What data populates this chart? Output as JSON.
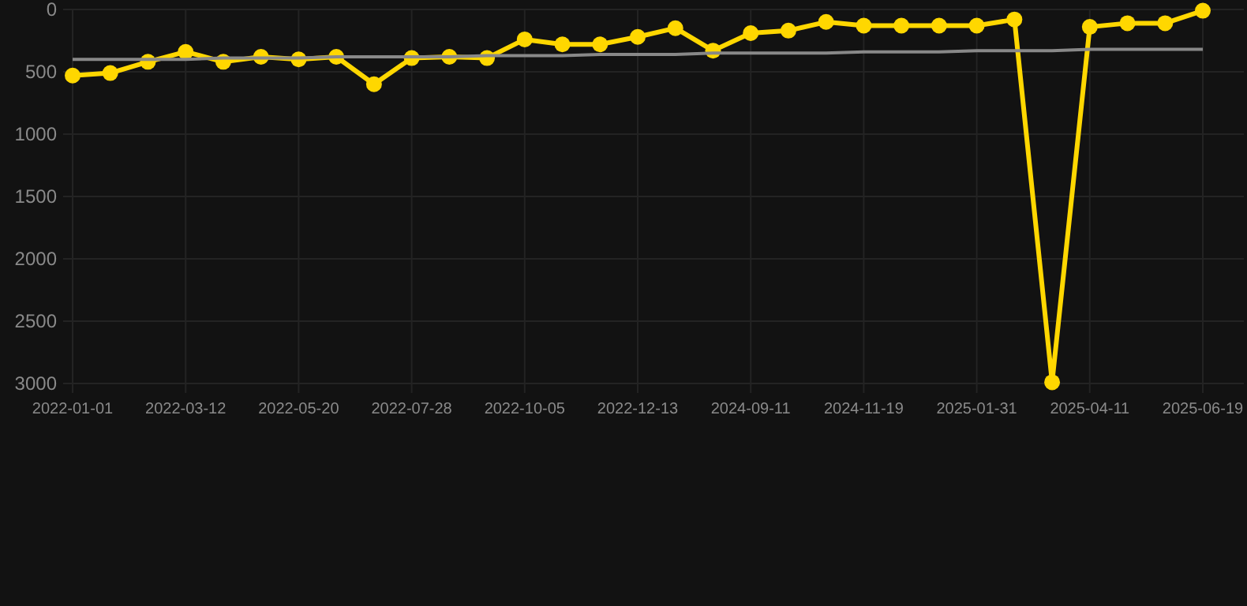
{
  "chart_data": {
    "type": "line",
    "categories": [
      "2022-01-01",
      null,
      null,
      "2022-03-12",
      null,
      null,
      "2022-05-20",
      null,
      null,
      "2022-07-28",
      null,
      null,
      "2022-10-05",
      null,
      null,
      "2022-12-13",
      null,
      null,
      "2024-09-11",
      null,
      null,
      "2024-11-19",
      null,
      null,
      "2025-01-31",
      null,
      null,
      "2025-04-11",
      null,
      null,
      "2025-06-19"
    ],
    "series": [
      {
        "color": "#ffd700",
        "marker": "circle",
        "values": [
          530,
          510,
          420,
          340,
          420,
          380,
          400,
          380,
          600,
          390,
          380,
          390,
          240,
          280,
          280,
          220,
          150,
          330,
          190,
          170,
          100,
          130,
          130,
          130,
          130,
          80,
          2990,
          140,
          110,
          110,
          10
        ]
      },
      {
        "color": "#888888",
        "marker": "none",
        "values": [
          400,
          400,
          400,
          400,
          390,
          390,
          390,
          380,
          380,
          380,
          380,
          370,
          370,
          370,
          360,
          360,
          360,
          350,
          350,
          350,
          350,
          340,
          340,
          340,
          330,
          330,
          330,
          320,
          320,
          320,
          320
        ]
      }
    ],
    "ylim": [
      3000,
      0
    ],
    "yticks": [
      0,
      500,
      1000,
      1500,
      2000,
      2500,
      3000
    ],
    "grid": true
  }
}
